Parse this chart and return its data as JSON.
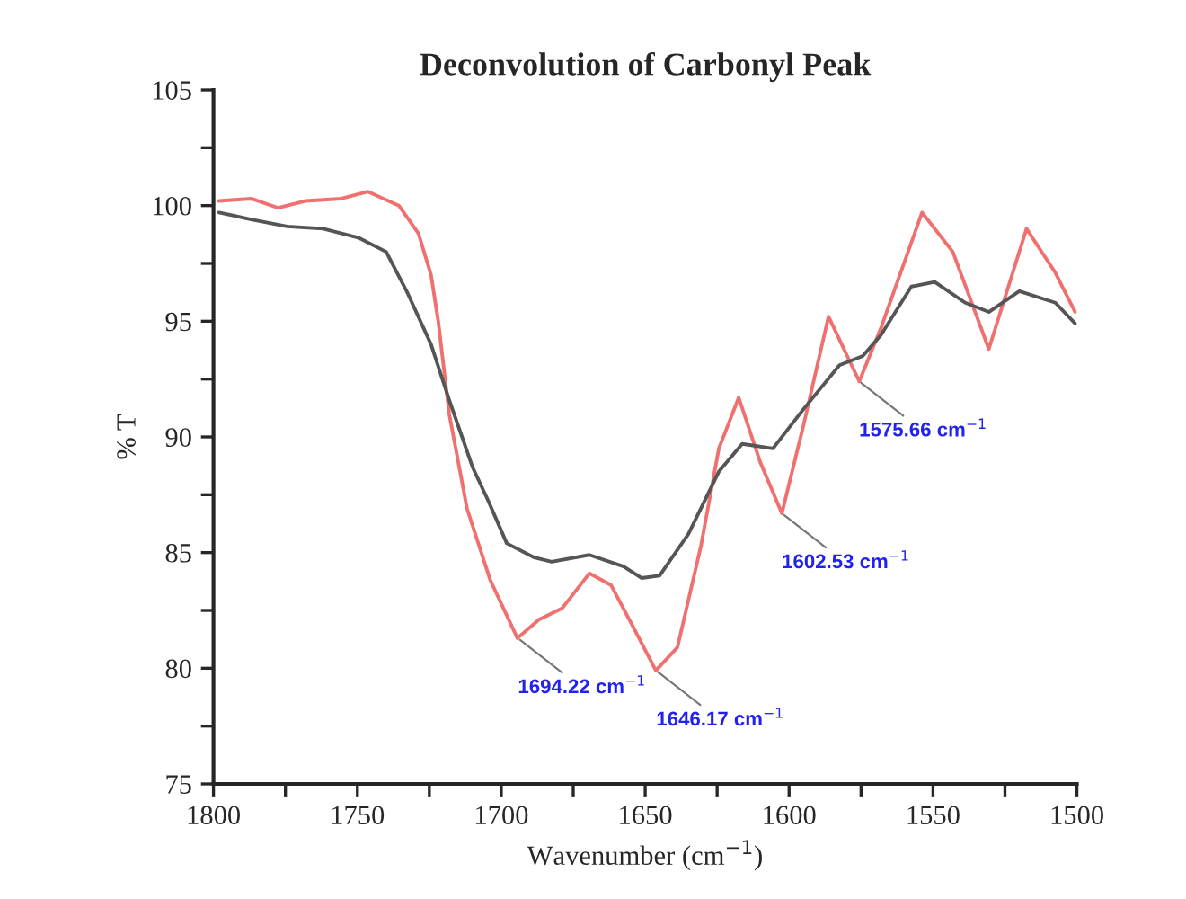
{
  "chart_data": {
    "type": "line",
    "title": "Deconvolution of Carbonyl Peak",
    "xlabel": "Wavenumber (cm$^{−1}$)",
    "ylabel": "% T",
    "xlim": [
      1800,
      1500
    ],
    "xticks": [
      1800,
      {
        "value": 1775,
        "label": null
      },
      1750,
      {
        "value": 1725,
        "label": null
      },
      1700,
      {
        "value": 1675,
        "label": null
      },
      1650,
      {
        "value": 1625,
        "label": null
      },
      1600,
      {
        "value": 1575,
        "label": null
      },
      1550,
      {
        "value": 1525,
        "label": null
      },
      1500
    ],
    "ylim": [
      75,
      105
    ],
    "yticks": [
      75,
      {
        "value": 77.5,
        "label": null
      },
      80,
      {
        "value": 82.5,
        "label": null
      },
      85,
      {
        "value": 87.5,
        "label": null
      },
      90,
      {
        "value": 92.5,
        "label": null
      },
      95,
      {
        "value": 97.5,
        "label": null
      },
      100,
      {
        "value": 102.5,
        "label": null
      },
      105
    ],
    "grid": false,
    "legend": false,
    "marker": "none",
    "line_style": "solid",
    "series": [
      {
        "color": "#f07070",
        "x": [
          1798.1,
          1786.9,
          1777.5,
          1768.1,
          1755.6,
          1746.3,
          1735.6,
          1728.8,
          1724.4,
          1721.9,
          1718.1,
          1711.9,
          1703.8,
          1694.4,
          1686.9,
          1678.8,
          1669.4,
          1661.9,
          1653.8,
          1646.3,
          1638.8,
          1630.6,
          1624.4,
          1617.5,
          1610.0,
          1602.5,
          1595.0,
          1586.3,
          1575.6,
          1568.1,
          1553.8,
          1543.1,
          1530.6,
          1517.5,
          1507.5,
          1500.6
        ],
        "values": [
          100.2,
          100.3,
          99.9,
          100.2,
          100.3,
          100.6,
          100.0,
          98.8,
          97.0,
          95.0,
          91.0,
          86.9,
          83.8,
          81.3,
          82.1,
          82.6,
          84.1,
          83.6,
          81.7,
          79.9,
          80.9,
          85.3,
          89.5,
          91.7,
          88.9,
          86.7,
          90.5,
          95.2,
          92.4,
          94.7,
          99.7,
          98.0,
          93.8,
          99.0,
          97.1,
          95.4
        ]
      },
      {
        "color": "#555555",
        "x": [
          1798.1,
          1786.9,
          1774.4,
          1761.9,
          1749.4,
          1740.0,
          1732.5,
          1724.4,
          1718.1,
          1710.0,
          1704.4,
          1698.1,
          1688.8,
          1682.5,
          1669.4,
          1657.5,
          1651.3,
          1645.0,
          1635.0,
          1624.4,
          1616.3,
          1605.6,
          1595.0,
          1582.5,
          1574.4,
          1568.1,
          1557.5,
          1549.4,
          1538.8,
          1530.6,
          1520.0,
          1507.5,
          1500.6
        ],
        "values": [
          99.7,
          99.4,
          99.1,
          99.0,
          98.6,
          98.0,
          96.2,
          94.0,
          91.6,
          88.7,
          87.2,
          85.4,
          84.8,
          84.6,
          84.9,
          84.4,
          83.9,
          84.0,
          85.8,
          88.5,
          89.7,
          89.5,
          91.2,
          93.1,
          93.5,
          94.4,
          96.5,
          96.7,
          95.8,
          95.4,
          96.3,
          95.8,
          94.9
        ]
      }
    ],
    "annotations": [
      {
        "text": "1694.22 cm$^{−1}$",
        "x": 1694.22,
        "y": 81.3
      },
      {
        "text": "1646.17 cm$^{−1}$",
        "x": 1646.17,
        "y": 79.9
      },
      {
        "text": "1602.53 cm$^{−1}$",
        "x": 1602.53,
        "y": 86.7
      },
      {
        "text": "1575.66 cm$^{−1}$",
        "x": 1575.66,
        "y": 92.4
      }
    ]
  }
}
